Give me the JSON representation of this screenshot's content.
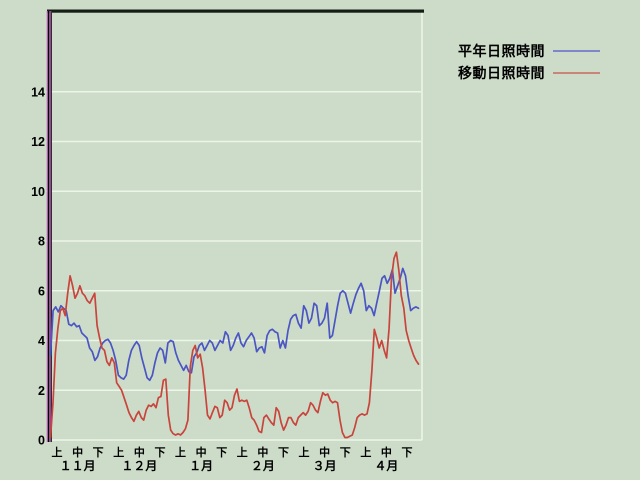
{
  "page": {
    "background": "#ccdcc8"
  },
  "legend": {
    "items": [
      {
        "label": "平年日照時間",
        "swatch_color": "#7f87cb"
      },
      {
        "label": "移動日照時間",
        "swatch_color": "#c98577"
      }
    ]
  },
  "chart_data": {
    "type": "line",
    "title": "",
    "xlabel": "",
    "ylabel": "",
    "grid": "horizontal-white",
    "legend_position": "top-right",
    "ylim": [
      0,
      17.3
    ],
    "y_ticks": [
      0,
      2,
      4,
      6,
      8,
      10,
      12,
      14
    ],
    "x_decade_labels": [
      "上",
      "中",
      "下",
      "上",
      "中",
      "下",
      "上",
      "中",
      "下",
      "上",
      "中",
      "下",
      "上",
      "中",
      "下",
      "上",
      "中",
      "下"
    ],
    "x_month_labels": [
      "１１月",
      "１２月",
      "１月",
      "２月",
      "３月",
      "４月"
    ],
    "colors": {
      "gridline": "#edf4e8",
      "axis_white": "#e8f2e4",
      "frame_top": "#141e14",
      "axis_pink": "#d591d5",
      "axis_black": "#000000",
      "axis_purple": "#a03ca0",
      "axis_dark": "#1e3c1e",
      "text": "#000000"
    },
    "series": [
      {
        "name": "平年日照時間",
        "color": "#4b55c3",
        "values": [
          3.4,
          5.2,
          5.35,
          5.15,
          5.4,
          5.3,
          5.2,
          4.65,
          4.6,
          4.7,
          4.55,
          4.6,
          4.3,
          4.2,
          4.1,
          3.7,
          3.55,
          3.2,
          3.35,
          3.7,
          3.9,
          4.0,
          4.05,
          3.9,
          3.6,
          3.2,
          2.6,
          2.5,
          2.45,
          2.6,
          3.2,
          3.6,
          3.8,
          3.95,
          3.8,
          3.3,
          2.9,
          2.5,
          2.4,
          2.6,
          3.1,
          3.5,
          3.7,
          3.6,
          3.1,
          3.9,
          4.0,
          3.95,
          3.5,
          3.2,
          3.0,
          2.8,
          3.0,
          2.75,
          2.7,
          3.35,
          3.5,
          3.8,
          3.9,
          3.6,
          3.8,
          4.0,
          3.9,
          3.6,
          3.8,
          4.0,
          3.9,
          4.35,
          4.2,
          3.6,
          3.8,
          4.1,
          4.3,
          3.9,
          3.75,
          4.0,
          4.15,
          4.3,
          4.1,
          3.55,
          3.7,
          3.75,
          3.5,
          4.2,
          4.4,
          4.45,
          4.35,
          4.3,
          3.7,
          4.0,
          3.7,
          4.4,
          4.85,
          5.0,
          5.05,
          4.7,
          4.5,
          5.4,
          5.2,
          4.7,
          4.9,
          5.5,
          5.4,
          4.6,
          4.7,
          4.9,
          5.5,
          4.1,
          4.2,
          4.8,
          5.4,
          5.9,
          6.0,
          5.9,
          5.5,
          5.1,
          5.5,
          5.85,
          6.1,
          6.3,
          6.0,
          5.2,
          5.4,
          5.3,
          5.0,
          5.5,
          6.0,
          6.5,
          6.6,
          6.3,
          6.5,
          6.85,
          5.9,
          6.2,
          6.5,
          6.9,
          6.6,
          5.8,
          5.2,
          5.3,
          5.35,
          5.3
        ]
      },
      {
        "name": "移動日照時間",
        "color": "#c9443c",
        "values": [
          0.1,
          1.5,
          3.5,
          4.5,
          5.2,
          5.3,
          5.0,
          5.9,
          6.6,
          6.2,
          5.7,
          5.9,
          6.2,
          5.9,
          5.8,
          5.6,
          5.5,
          5.7,
          5.9,
          4.6,
          4.1,
          3.7,
          3.6,
          3.15,
          3.0,
          3.3,
          3.1,
          2.3,
          2.15,
          2.0,
          1.7,
          1.4,
          1.1,
          0.9,
          0.75,
          1.0,
          1.15,
          0.9,
          0.8,
          1.2,
          1.4,
          1.35,
          1.45,
          1.3,
          1.7,
          1.75,
          2.4,
          2.45,
          1.0,
          0.4,
          0.25,
          0.2,
          0.25,
          0.2,
          0.3,
          0.45,
          0.8,
          2.95,
          3.6,
          3.8,
          3.3,
          3.45,
          2.9,
          2.0,
          1.0,
          0.85,
          1.1,
          1.35,
          1.3,
          0.9,
          1.0,
          1.6,
          1.5,
          1.2,
          1.3,
          1.8,
          2.05,
          1.55,
          1.6,
          1.55,
          1.6,
          1.3,
          0.9,
          0.8,
          0.6,
          0.35,
          0.3,
          0.9,
          1.0,
          0.85,
          0.7,
          0.6,
          1.3,
          1.15,
          0.7,
          0.4,
          0.6,
          0.9,
          0.9,
          0.7,
          0.6,
          0.9,
          1.0,
          1.1,
          1.0,
          1.15,
          1.5,
          1.4,
          1.2,
          1.1,
          1.55,
          1.9,
          1.8,
          1.85,
          1.6,
          1.5,
          1.55,
          1.5,
          0.8,
          0.3,
          0.1,
          0.1,
          0.15,
          0.2,
          0.5,
          0.9,
          1.0,
          1.05,
          1.0,
          1.05,
          1.5,
          2.8,
          4.45,
          4.1,
          3.7,
          4.0,
          3.6,
          3.3,
          4.5,
          6.5,
          7.3,
          7.55,
          6.8,
          5.8,
          5.3,
          4.4,
          4.0,
          3.7,
          3.4,
          3.2,
          3.05
        ]
      }
    ]
  }
}
